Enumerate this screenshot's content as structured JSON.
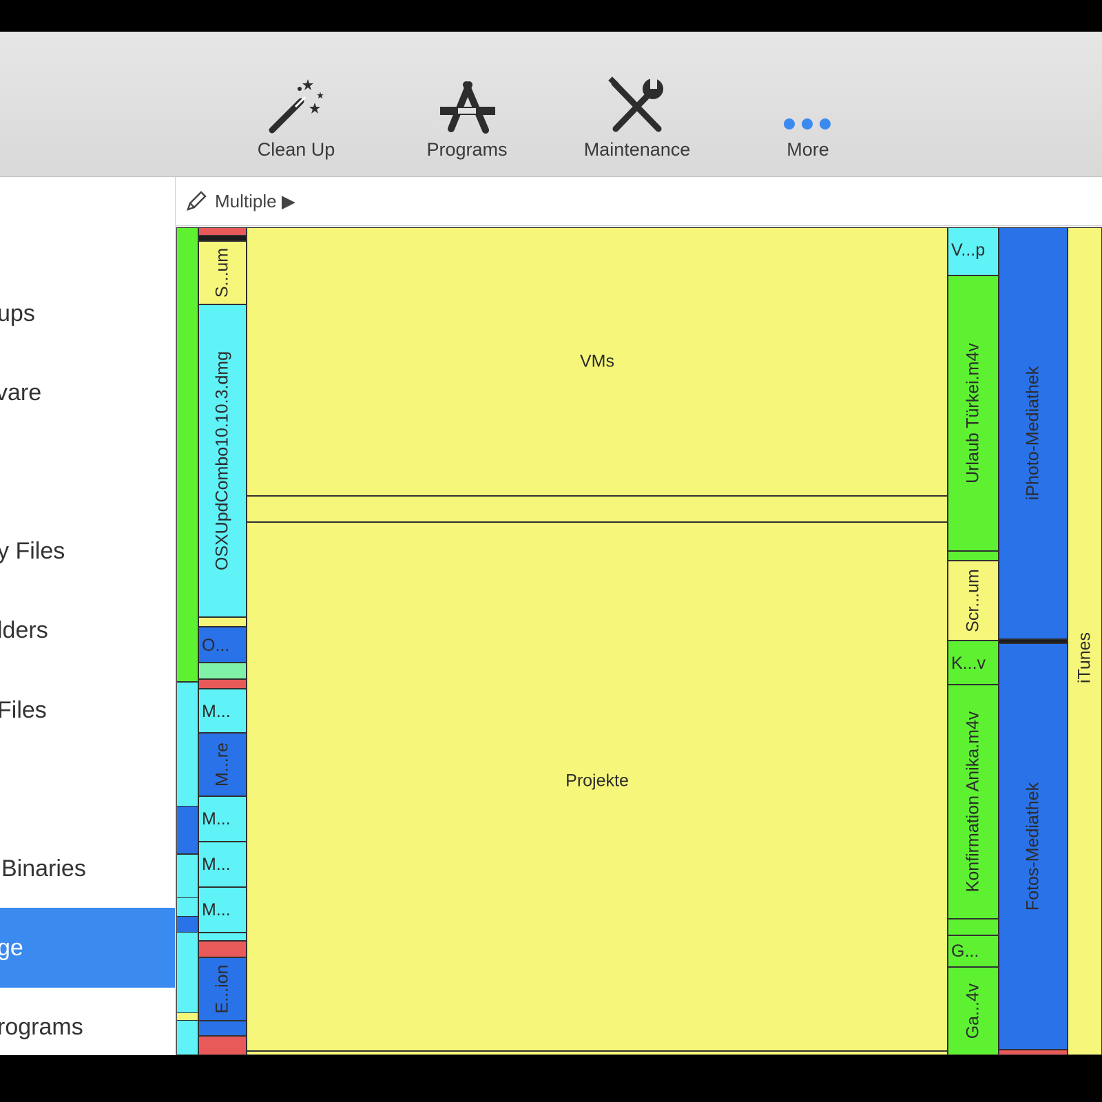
{
  "colors": {
    "yellow": "#f6f77a",
    "green": "#5df132",
    "cyan": "#5ff2f7",
    "blue": "#2a72e8",
    "red": "#e85a5a",
    "selection": "#3b8af0"
  },
  "toolbar": {
    "clean_up": {
      "label": "Clean Up",
      "icon": "magic-wand-icon"
    },
    "programs": {
      "label": "Programs",
      "icon": "app-store-icon"
    },
    "maintenance": {
      "label": "Maintenance",
      "icon": "wrench-screwdriver-icon"
    },
    "more": {
      "label": "More",
      "icon": "ellipsis-icon"
    }
  },
  "sidebar": {
    "items": [
      {
        "label": "ups"
      },
      {
        "label": "vare"
      },
      {
        "label": "y Files"
      },
      {
        "label": "lders"
      },
      {
        "label": "Files"
      },
      {
        "label": "Binaries"
      },
      {
        "label": "ge"
      },
      {
        "label": "rograms"
      }
    ]
  },
  "pathbar": {
    "label": "Multiple ▶"
  },
  "treemap": {
    "labels": {
      "s_um": "S...um",
      "osxupd": "OSXUpdCombo10.10.3.dmg",
      "o": "O...",
      "m1": "M...",
      "m_re": "M...re",
      "m2": "M...",
      "m3": "M...",
      "m4": "M...",
      "e_ion": "E...ion",
      "vms": "VMs",
      "projekte": "Projekte",
      "v_p": "V...p",
      "urlaub": "Urlaub Türkei.m4v",
      "scr_um": "Scr...um",
      "k_v": "K...v",
      "konfirmation": "Konfirmation Anika.m4v",
      "g": "G...",
      "ga_4v": "Ga...4v",
      "iphoto": "iPhoto-Mediathek",
      "fotos": "Fotos-Mediathek",
      "itunes": "iTunes"
    }
  }
}
